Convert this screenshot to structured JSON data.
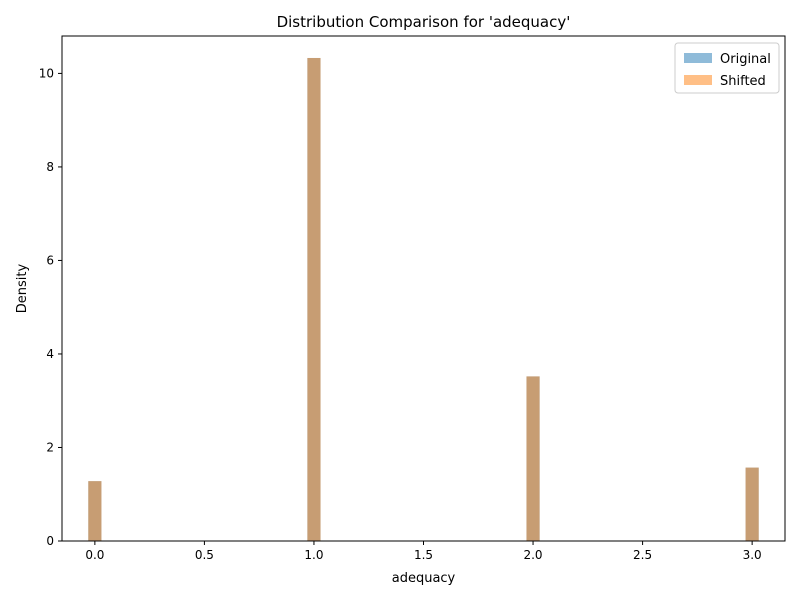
{
  "chart_data": {
    "type": "bar",
    "title": "Distribution Comparison for 'adequacy'",
    "xlabel": "adequacy",
    "ylabel": "Density",
    "xlim": [
      -0.15,
      3.15
    ],
    "ylim": [
      0,
      10.8
    ],
    "xticks": [
      0.0,
      0.5,
      1.0,
      1.5,
      2.0,
      2.5,
      3.0
    ],
    "xtick_labels": [
      "0.0",
      "0.5",
      "1.0",
      "1.5",
      "2.0",
      "2.5",
      "3.0"
    ],
    "yticks": [
      0,
      2,
      4,
      6,
      8,
      10
    ],
    "ytick_labels": [
      "0",
      "2",
      "4",
      "6",
      "8",
      "10"
    ],
    "bar_width": 0.06,
    "grid": false,
    "legend_position": "top-right",
    "series": [
      {
        "name": "Original",
        "color": "#1f77b4",
        "opacity": 0.5,
        "x": [
          0.0,
          1.0,
          2.0,
          3.0
        ],
        "values": [
          1.28,
          10.33,
          3.52,
          1.57
        ]
      },
      {
        "name": "Shifted",
        "color": "#ff7f0e",
        "opacity": 0.5,
        "x": [
          0.0,
          1.0,
          2.0,
          3.0
        ],
        "values": [
          1.28,
          10.33,
          3.52,
          1.57
        ]
      }
    ]
  }
}
